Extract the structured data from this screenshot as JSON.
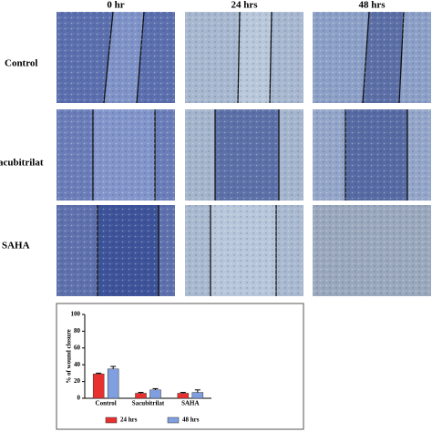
{
  "columns": [
    "0 hr",
    "24 hrs",
    "48 hrs"
  ],
  "rows": [
    "Control",
    "acubitrilat",
    "SAHA"
  ],
  "chart_data": {
    "type": "bar",
    "ylabel": "% of wound closure",
    "categories": [
      "Control",
      "Sacubitrilat",
      "SAHA"
    ],
    "series": [
      {
        "name": "24 hrs",
        "color": "#e8302f",
        "values": [
          29,
          6,
          6
        ],
        "errors": [
          1,
          1,
          1
        ]
      },
      {
        "name": "48 hrs",
        "color": "#7f9fe0",
        "values": [
          35,
          10,
          7
        ],
        "errors": [
          3,
          1.5,
          3
        ]
      }
    ],
    "ylim": [
      0,
      100
    ],
    "yticks": [
      0,
      20,
      40,
      60,
      80,
      100
    ],
    "legend": "bottom"
  }
}
